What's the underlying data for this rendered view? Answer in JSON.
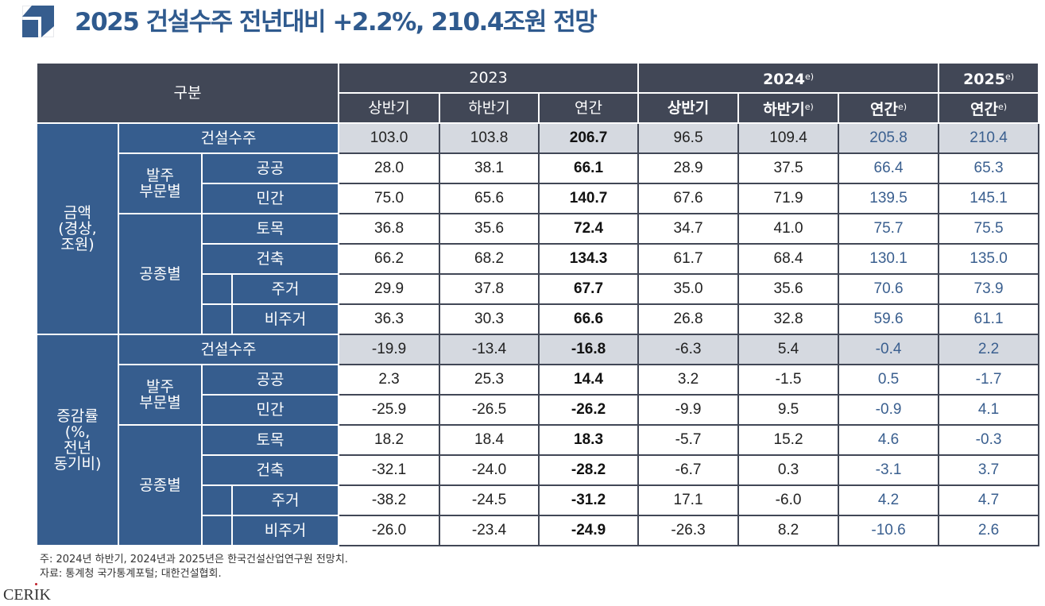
{
  "title": "2025 건설수주 전년대비 +2.2%, 210.4조원 전망",
  "colors": {
    "title": "#2f5a8e",
    "header_bg": "#414756",
    "label_bg": "#365d8e",
    "highlight_row": "#d5d9e0",
    "forecast_text": "#3a5f8f"
  },
  "header": {
    "category": "구분",
    "years": [
      {
        "label": "2023",
        "sup": ""
      },
      {
        "label": "2024",
        "sup": "e)"
      },
      {
        "label": "2025",
        "sup": "e)"
      }
    ],
    "periods": [
      {
        "label": "상반기",
        "sup": ""
      },
      {
        "label": "하반기",
        "sup": ""
      },
      {
        "label": "연간",
        "sup": ""
      },
      {
        "label": "상반기",
        "sup": ""
      },
      {
        "label": "하반기",
        "sup": "e)"
      },
      {
        "label": "연간",
        "sup": "e)"
      },
      {
        "label": "연간",
        "sup": "e)"
      }
    ]
  },
  "sections": [
    {
      "label": "금액\n(경상,\n조원)",
      "group_order": "발주\n부문별",
      "group_type": "공종별",
      "rows": [
        {
          "label": "건설수주",
          "values": [
            "103.0",
            "103.8",
            "206.7",
            "96.5",
            "109.4",
            "205.8",
            "210.4"
          ]
        },
        {
          "label": "공공",
          "values": [
            "28.0",
            "38.1",
            "66.1",
            "28.9",
            "37.5",
            "66.4",
            "65.3"
          ]
        },
        {
          "label": "민간",
          "values": [
            "75.0",
            "65.6",
            "140.7",
            "67.6",
            "71.9",
            "139.5",
            "145.1"
          ]
        },
        {
          "label": "토목",
          "values": [
            "36.8",
            "35.6",
            "72.4",
            "34.7",
            "41.0",
            "75.7",
            "75.5"
          ]
        },
        {
          "label": "건축",
          "values": [
            "66.2",
            "68.2",
            "134.3",
            "61.7",
            "68.4",
            "130.1",
            "135.0"
          ]
        },
        {
          "label": "주거",
          "values": [
            "29.9",
            "37.8",
            "67.7",
            "35.0",
            "35.6",
            "70.6",
            "73.9"
          ]
        },
        {
          "label": "비주거",
          "values": [
            "36.3",
            "30.3",
            "66.6",
            "26.8",
            "32.8",
            "59.6",
            "61.1"
          ]
        }
      ]
    },
    {
      "label": "증감률\n(%,\n전년\n동기비)",
      "group_order": "발주\n부문별",
      "group_type": "공종별",
      "rows": [
        {
          "label": "건설수주",
          "values": [
            "-19.9",
            "-13.4",
            "-16.8",
            "-6.3",
            "5.4",
            "-0.4",
            "2.2"
          ]
        },
        {
          "label": "공공",
          "values": [
            "2.3",
            "25.3",
            "14.4",
            "3.2",
            "-1.5",
            "0.5",
            "-1.7"
          ]
        },
        {
          "label": "민간",
          "values": [
            "-25.9",
            "-26.5",
            "-26.2",
            "-9.9",
            "9.5",
            "-0.9",
            "4.1"
          ]
        },
        {
          "label": "토목",
          "values": [
            "18.2",
            "18.4",
            "18.3",
            "-5.7",
            "15.2",
            "4.6",
            "-0.3"
          ]
        },
        {
          "label": "건축",
          "values": [
            "-32.1",
            "-24.0",
            "-28.2",
            "-6.7",
            "0.3",
            "-3.1",
            "3.7"
          ]
        },
        {
          "label": "주거",
          "values": [
            "-38.2",
            "-24.5",
            "-31.2",
            "17.1",
            "-6.0",
            "4.2",
            "4.7"
          ]
        },
        {
          "label": "비주거",
          "values": [
            "-26.0",
            "-23.4",
            "-24.9",
            "-26.3",
            "8.2",
            "-10.6",
            "2.6"
          ]
        }
      ]
    }
  ],
  "notes": [
    "주: 2024년 하반기, 2024년과 2025년은 한국건설산업연구원 전망치.",
    "자료: 통계청 국가통계포털; 대한건설협회."
  ],
  "logo_text": "CERIK"
}
